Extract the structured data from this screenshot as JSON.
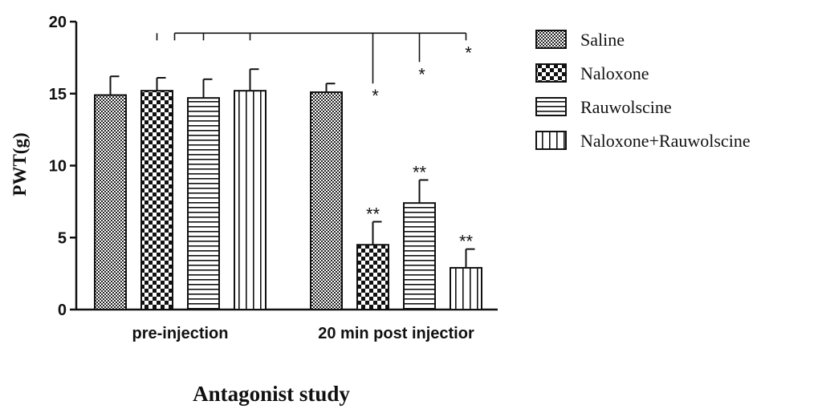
{
  "chart_data": {
    "type": "bar",
    "title": "",
    "xlabel": "Antagonist study",
    "ylabel": "PWT(g)",
    "ylim": [
      0,
      20
    ],
    "yticks": [
      "0",
      "5",
      "10",
      "15",
      "20"
    ],
    "categories": [
      "pre-injection",
      "20 min post injectior"
    ],
    "series": [
      {
        "name": "Saline",
        "pattern": "dots",
        "values": [
          14.9,
          15.1
        ],
        "errors": [
          1.3,
          0.6
        ],
        "labels": [
          "",
          ""
        ]
      },
      {
        "name": "Naloxone",
        "pattern": "checker",
        "values": [
          15.2,
          4.5
        ],
        "errors": [
          0.9,
          1.6
        ],
        "labels": [
          "",
          "**"
        ]
      },
      {
        "name": "Rauwolscine",
        "pattern": "hlines",
        "values": [
          14.7,
          7.4
        ],
        "errors": [
          1.3,
          1.6
        ],
        "labels": [
          "",
          "**"
        ]
      },
      {
        "name": "Naloxone+Rauwolscine",
        "pattern": "vlines",
        "values": [
          15.2,
          2.9
        ],
        "errors": [
          1.5,
          1.3
        ],
        "labels": [
          "",
          "**"
        ]
      }
    ],
    "comparison": {
      "y": 19.2,
      "from_series": "Saline",
      "from_category": "pre-injection",
      "drops": [
        {
          "series": "Naloxone",
          "category": "pre-injection",
          "to": 18.7,
          "label": ""
        },
        {
          "series": "Rauwolscine",
          "category": "pre-injection",
          "to": 18.7,
          "label": ""
        },
        {
          "series": "Naloxone+Rauwolscine",
          "category": "pre-injection",
          "to": 18.7,
          "label": ""
        },
        {
          "series": "Naloxone",
          "category": "20 min post injectior",
          "to": 15.7,
          "label": "*"
        },
        {
          "series": "Rauwolscine",
          "category": "20 min post injectior",
          "to": 17.2,
          "label": "*"
        },
        {
          "series": "Naloxone+Rauwolscine",
          "category": "20 min post injectior",
          "to": 18.7,
          "label": "*"
        }
      ]
    },
    "legend_position": "right"
  },
  "colors": {
    "ink": "#111111",
    "background": "#ffffff"
  }
}
